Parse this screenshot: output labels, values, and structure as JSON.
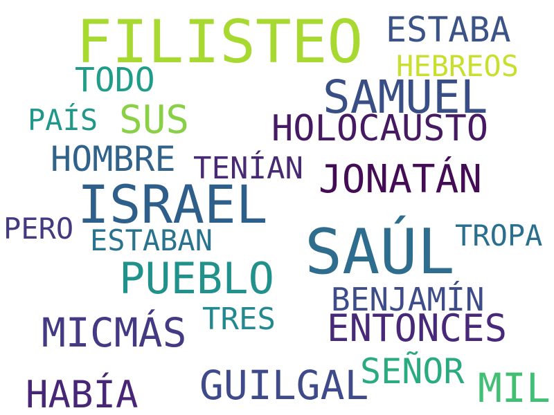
{
  "words": {
    "filisteo": {
      "text": "FILISTEO",
      "color": "#a8d930"
    },
    "estaba": {
      "text": "ESTABA",
      "color": "#3b5386"
    },
    "hebreos": {
      "text": "HEBREOS",
      "color": "#c8df2d"
    },
    "todo": {
      "text": "TODO",
      "color": "#1f9d88"
    },
    "samuel": {
      "text": "SAMUEL",
      "color": "#3a4e86"
    },
    "pais": {
      "text": "PAÍS",
      "color": "#21978a"
    },
    "sus": {
      "text": "SUS",
      "color": "#8ad046"
    },
    "holocausto": {
      "text": "HOLOCAUSTO",
      "color": "#461a62"
    },
    "hombre": {
      "text": "HOMBRE",
      "color": "#30628a"
    },
    "tenian": {
      "text": "TENÍAN",
      "color": "#472a73"
    },
    "jonatan": {
      "text": "JONATÁN",
      "color": "#450c56"
    },
    "israel": {
      "text": "ISRAEL",
      "color": "#2e5f8a"
    },
    "pero": {
      "text": "PERO",
      "color": "#433a80"
    },
    "estaban": {
      "text": "ESTABAN",
      "color": "#2a738e"
    },
    "tropa": {
      "text": "TROPA",
      "color": "#2b6f8e"
    },
    "saul": {
      "text": "SAÚL",
      "color": "#2f6d8e"
    },
    "pueblo": {
      "text": "PUEBLO",
      "color": "#21918c"
    },
    "benjamin": {
      "text": "BENJAMÍN",
      "color": "#3e4c89"
    },
    "tres": {
      "text": "TRES",
      "color": "#23898e"
    },
    "entonces": {
      "text": "ENTONCES",
      "color": "#482878"
    },
    "micmas": {
      "text": "MICMÁS",
      "color": "#443a83"
    },
    "senor": {
      "text": "SEÑOR",
      "color": "#2aaa7f"
    },
    "guilgal": {
      "text": "GUILGAL",
      "color": "#3e4a89"
    },
    "mil": {
      "text": "MIL",
      "color": "#40bf75"
    },
    "habia": {
      "text": "HABÍA",
      "color": "#482677"
    }
  }
}
